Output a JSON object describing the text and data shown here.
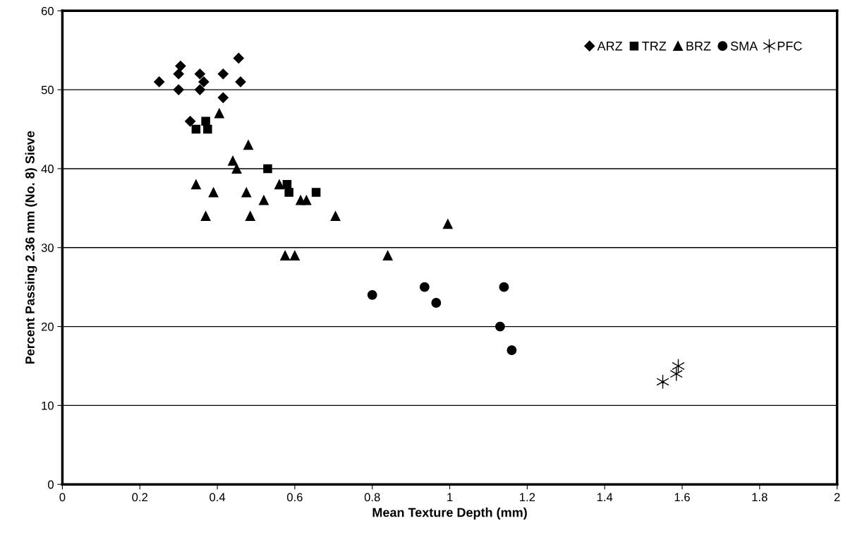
{
  "chart_data": {
    "type": "scatter",
    "xlabel": "Mean Texture Depth (mm)",
    "ylabel": "Percent Passing 2.36 mm (No. 8) Sieve",
    "xlim": [
      0,
      2
    ],
    "xticks": [
      0,
      0.2,
      0.4,
      0.6,
      0.8,
      1,
      1.2,
      1.4,
      1.6,
      1.8,
      2
    ],
    "ylim": [
      0,
      60
    ],
    "yticks": [
      0,
      10,
      20,
      30,
      40,
      50,
      60
    ],
    "grid": "y",
    "legend": "top right",
    "series": [
      {
        "name": "ARZ",
        "color": "#000000",
        "marker": "diamond",
        "x": [
          0.25,
          0.3,
          0.3,
          0.305,
          0.355,
          0.355,
          0.365,
          0.415,
          0.415,
          0.455,
          0.46,
          0.33
        ],
        "values": [
          51,
          52,
          50,
          53,
          52,
          50,
          51,
          52,
          49,
          54,
          51,
          46
        ]
      },
      {
        "name": "TRZ",
        "color": "#000000",
        "marker": "square",
        "x": [
          0.345,
          0.37,
          0.375,
          0.53,
          0.58,
          0.585,
          0.655
        ],
        "values": [
          45,
          46,
          45,
          40,
          38,
          37,
          37
        ]
      },
      {
        "name": "BRZ",
        "color": "#000000",
        "marker": "triangle",
        "x": [
          0.405,
          0.48,
          0.44,
          0.45,
          0.345,
          0.39,
          0.475,
          0.56,
          0.37,
          0.485,
          0.52,
          0.615,
          0.63,
          0.705,
          0.575,
          0.6,
          0.84,
          0.995
        ],
        "values": [
          47,
          43,
          41,
          40,
          38,
          37,
          37,
          38,
          34,
          34,
          36,
          36,
          36,
          34,
          29,
          29,
          29,
          33
        ]
      },
      {
        "name": "SMA",
        "color": "#000000",
        "marker": "circle",
        "x": [
          0.8,
          0.935,
          0.965,
          1.14,
          1.13,
          1.16
        ],
        "values": [
          24,
          25,
          23,
          25,
          20,
          17
        ]
      },
      {
        "name": "PFC",
        "color": "#000000",
        "marker": "cross",
        "x": [
          1.55,
          1.585,
          1.59
        ],
        "values": [
          13,
          14,
          15
        ]
      }
    ]
  }
}
